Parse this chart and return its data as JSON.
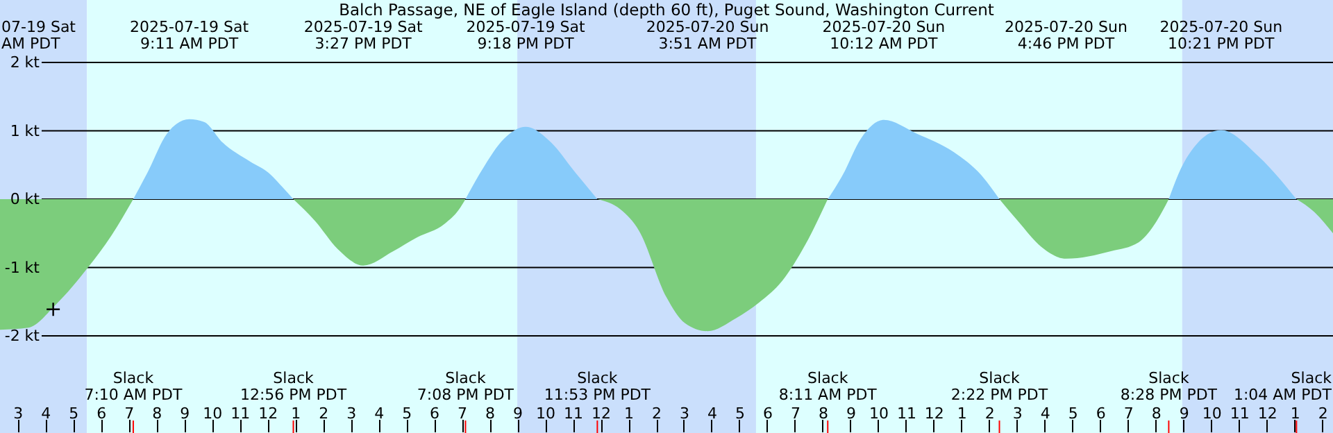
{
  "chart_data": {
    "type": "area",
    "title": "Balch Passage, NE of Eagle Island (depth 60 ft), Puget Sound, Washington Current",
    "xlim": [
      "2025-07-19T02:22",
      "2025-07-21T02:23"
    ],
    "ylim": [
      -3.42,
      2.914
    ],
    "xticks": [
      {
        "value": "2025-07-19T03:00",
        "label": "3"
      },
      {
        "value": "2025-07-19T04:00",
        "label": "4"
      },
      {
        "value": "2025-07-19T05:00",
        "label": "5"
      },
      {
        "value": "2025-07-19T06:00",
        "label": "6"
      },
      {
        "value": "2025-07-19T07:00",
        "label": "7"
      },
      {
        "value": "2025-07-19T08:00",
        "label": "8"
      },
      {
        "value": "2025-07-19T09:00",
        "label": "9"
      },
      {
        "value": "2025-07-19T10:00",
        "label": "10"
      },
      {
        "value": "2025-07-19T11:00",
        "label": "11"
      },
      {
        "value": "2025-07-19T12:00",
        "label": "12"
      },
      {
        "value": "2025-07-19T13:00",
        "label": "1"
      },
      {
        "value": "2025-07-19T14:00",
        "label": "2"
      },
      {
        "value": "2025-07-19T15:00",
        "label": "3"
      },
      {
        "value": "2025-07-19T16:00",
        "label": "4"
      },
      {
        "value": "2025-07-19T17:00",
        "label": "5"
      },
      {
        "value": "2025-07-19T18:00",
        "label": "6"
      },
      {
        "value": "2025-07-19T19:00",
        "label": "7"
      },
      {
        "value": "2025-07-19T20:00",
        "label": "8"
      },
      {
        "value": "2025-07-19T21:00",
        "label": "9"
      },
      {
        "value": "2025-07-19T22:00",
        "label": "10"
      },
      {
        "value": "2025-07-19T23:00",
        "label": "11"
      },
      {
        "value": "2025-07-20T00:00",
        "label": "12"
      },
      {
        "value": "2025-07-20T01:00",
        "label": "1"
      },
      {
        "value": "2025-07-20T02:00",
        "label": "2"
      },
      {
        "value": "2025-07-20T03:00",
        "label": "3"
      },
      {
        "value": "2025-07-20T04:00",
        "label": "4"
      },
      {
        "value": "2025-07-20T05:00",
        "label": "5"
      },
      {
        "value": "2025-07-20T06:00",
        "label": "6"
      },
      {
        "value": "2025-07-20T07:00",
        "label": "7"
      },
      {
        "value": "2025-07-20T08:00",
        "label": "8"
      },
      {
        "value": "2025-07-20T09:00",
        "label": "9"
      },
      {
        "value": "2025-07-20T10:00",
        "label": "10"
      },
      {
        "value": "2025-07-20T11:00",
        "label": "11"
      },
      {
        "value": "2025-07-20T12:00",
        "label": "12"
      },
      {
        "value": "2025-07-20T13:00",
        "label": "1"
      },
      {
        "value": "2025-07-20T14:00",
        "label": "2"
      },
      {
        "value": "2025-07-20T15:00",
        "label": "3"
      },
      {
        "value": "2025-07-20T16:00",
        "label": "4"
      },
      {
        "value": "2025-07-20T17:00",
        "label": "5"
      },
      {
        "value": "2025-07-20T18:00",
        "label": "6"
      },
      {
        "value": "2025-07-20T19:00",
        "label": "7"
      },
      {
        "value": "2025-07-20T20:00",
        "label": "8"
      },
      {
        "value": "2025-07-20T21:00",
        "label": "9"
      },
      {
        "value": "2025-07-20T22:00",
        "label": "10"
      },
      {
        "value": "2025-07-20T23:00",
        "label": "11"
      },
      {
        "value": "2025-07-21T00:00",
        "label": "12"
      },
      {
        "value": "2025-07-21T01:00",
        "label": "1"
      },
      {
        "value": "2025-07-21T02:00",
        "label": "2"
      }
    ],
    "yticks": [
      {
        "value": 2,
        "label": "2 kt"
      },
      {
        "value": 1,
        "label": "1 kt"
      },
      {
        "value": 0,
        "label": "0 kt"
      },
      {
        "value": -1,
        "label": "-1 kt"
      },
      {
        "value": -2,
        "label": "-2 kt"
      }
    ],
    "grid": "y",
    "bands": [
      {
        "axis": "x",
        "from": "2025-07-19T02:22",
        "to": "2025-07-19T05:30",
        "color": "#cadffc"
      },
      {
        "axis": "x",
        "from": "2025-07-19T05:30",
        "to": "2025-07-19T21:00",
        "color": "#ddffff"
      },
      {
        "axis": "x",
        "from": "2025-07-19T21:00",
        "to": "2025-07-20T05:36",
        "color": "#cadffc"
      },
      {
        "axis": "x",
        "from": "2025-07-20T05:36",
        "to": "2025-07-20T20:57",
        "color": "#ddffff"
      },
      {
        "axis": "x",
        "from": "2025-07-20T20:57",
        "to": "2025-07-21T02:23",
        "color": "#cadffc"
      }
    ],
    "series": [
      {
        "color": "#7ccd7c",
        "x": [
          "2025-07-19T02:22",
          "2025-07-19T03:23",
          "2025-07-19T04:23",
          "2025-07-19T05:32",
          "2025-07-19T06:23",
          "2025-07-19T07:10"
        ],
        "values": [
          -1.91,
          -1.88,
          -1.54,
          -1.0,
          -0.53,
          0
        ]
      },
      {
        "color": "#87cbfa",
        "x": [
          "2025-07-19T07:10",
          "2025-07-19T07:43",
          "2025-07-19T08:23",
          "2025-07-19T09:11",
          "2025-07-19T09:43",
          "2025-07-19T10:23",
          "2025-07-19T11:23",
          "2025-07-19T12:02",
          "2025-07-19T12:32",
          "2025-07-19T12:56"
        ],
        "values": [
          0,
          0.42,
          0.96,
          1.17,
          1.13,
          0.83,
          0.55,
          0.39,
          0.18,
          0
        ]
      },
      {
        "color": "#7ccd7c",
        "x": [
          "2025-07-19T12:56",
          "2025-07-19T13:43",
          "2025-07-19T14:32",
          "2025-07-19T15:27",
          "2025-07-19T16:32",
          "2025-07-19T17:23",
          "2025-07-19T18:23",
          "2025-07-19T18:53",
          "2025-07-19T19:08"
        ],
        "values": [
          0,
          -0.32,
          -0.73,
          -0.97,
          -0.76,
          -0.56,
          -0.36,
          -0.16,
          0
        ]
      },
      {
        "color": "#87cbfa",
        "x": [
          "2025-07-19T19:08",
          "2025-07-19T19:43",
          "2025-07-19T20:32",
          "2025-07-19T21:18",
          "2025-07-19T22:13",
          "2025-07-19T23:02",
          "2025-07-19T23:53"
        ],
        "values": [
          0,
          0.42,
          0.89,
          1.06,
          0.83,
          0.42,
          0
        ]
      },
      {
        "color": "#7ccd7c",
        "x": [
          "2025-07-19T23:53",
          "2025-07-20T00:43",
          "2025-07-20T01:23",
          "2025-07-20T02:23",
          "2025-07-20T03:02",
          "2025-07-20T03:51",
          "2025-07-20T04:53",
          "2025-07-20T05:43",
          "2025-07-20T06:32",
          "2025-07-20T07:23",
          "2025-07-20T08:11"
        ],
        "values": [
          0,
          -0.15,
          -0.46,
          -1.44,
          -1.81,
          -1.93,
          -1.74,
          -1.51,
          -1.2,
          -0.66,
          0
        ]
      },
      {
        "color": "#87cbfa",
        "x": [
          "2025-07-20T08:11",
          "2025-07-20T08:43",
          "2025-07-20T09:23",
          "2025-07-20T10:12",
          "2025-07-20T11:23",
          "2025-07-20T12:43",
          "2025-07-20T13:43",
          "2025-07-20T14:22"
        ],
        "values": [
          0,
          0.35,
          0.89,
          1.16,
          0.96,
          0.69,
          0.35,
          0
        ]
      },
      {
        "color": "#7ccd7c",
        "x": [
          "2025-07-20T14:22",
          "2025-07-20T15:02",
          "2025-07-20T15:53",
          "2025-07-20T16:46",
          "2025-07-20T18:23",
          "2025-07-20T19:23",
          "2025-07-20T20:02",
          "2025-07-20T20:28"
        ],
        "values": [
          0,
          -0.32,
          -0.7,
          -0.87,
          -0.76,
          -0.63,
          -0.32,
          0
        ]
      },
      {
        "color": "#87cbfa",
        "x": [
          "2025-07-20T20:28",
          "2025-07-20T21:02",
          "2025-07-20T22:21",
          "2025-07-20T23:43",
          "2025-07-21T01:04"
        ],
        "values": [
          0,
          0.55,
          1.01,
          0.62,
          0
        ]
      },
      {
        "color": "#7ccd7c",
        "x": [
          "2025-07-21T01:04",
          "2025-07-21T01:43",
          "2025-07-21T02:23"
        ],
        "values": [
          0,
          -0.19,
          -0.5
        ]
      },
      {
        "type": "scatter",
        "color": "#000000",
        "marker": "cross",
        "x": [
          "2025-07-19T04:17"
        ],
        "values": [
          -1.61
        ]
      }
    ],
    "annotations": [
      "07-19 Sat\nAM PDT",
      "2025-07-19 Sat\n9:11 AM PDT",
      "2025-07-19 Sat\n3:27 PM PDT",
      "2025-07-19 Sat\n9:18 PM PDT",
      "2025-07-20 Sun\n3:51 AM PDT",
      "2025-07-20 Sun\n10:12 AM PDT",
      "2025-07-20 Sun\n4:46 PM PDT",
      "2025-07-20 Sun\n10:21 PM PDT",
      "Slack\n7:10 AM PDT",
      "Slack\n12:56 PM PDT",
      "Slack\n7:08 PM PDT",
      "Slack\n11:53 PM PDT",
      "Slack\n8:11 AM PDT",
      "Slack\n2:22 PM PDT",
      "Slack\n8:28 PM PDT",
      "Slack\n1:04 AM PDT"
    ]
  }
}
